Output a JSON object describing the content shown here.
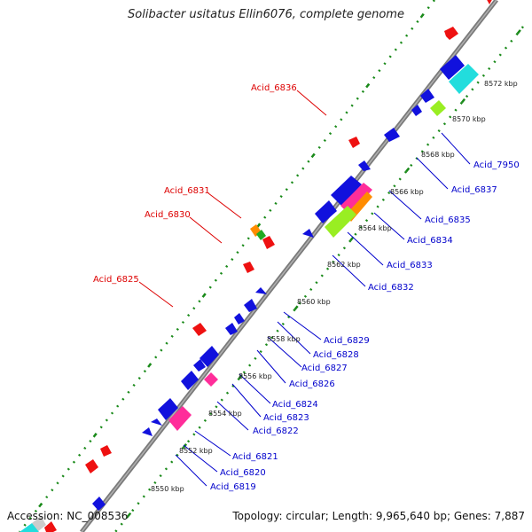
{
  "title": "Solibacter usitatus Ellin6076, complete genome",
  "footer": {
    "accession": "Accession: NC_008536",
    "summary": "Topology: circular; Length: 9,965,640 bp; Genes: 7,887"
  },
  "ticks": [
    "8550 kbp",
    "8552 kbp",
    "8554 kbp",
    "8556 kbp",
    "8558 kbp",
    "8560 kbp",
    "8562 kbp",
    "8564 kbp",
    "8566 kbp",
    "8568 kbp",
    "8570 kbp",
    "8572 kbp"
  ],
  "forward_labels": [
    "Acid_6836",
    "Acid_6831",
    "Acid_6830",
    "Acid_6825"
  ],
  "reverse_labels": [
    "Acid_7950",
    "Acid_6837",
    "Acid_6835",
    "Acid_6834",
    "Acid_6833",
    "Acid_6832",
    "Acid_6829",
    "Acid_6828",
    "Acid_6827",
    "Acid_6826",
    "Acid_6824",
    "Acid_6823",
    "Acid_6822",
    "Acid_6821",
    "Acid_6820",
    "Acid_6819"
  ],
  "colors": {
    "forward_gene": "#ee1111",
    "reverse_gene": "#1111dd",
    "backbone": "#808080",
    "tick_track": "#1a8a1a",
    "rna_magenta": "#ff2d9a",
    "rna_cyan": "#22dddd",
    "rna_green": "#99ee22",
    "rna_orange": "#ff8c00"
  }
}
